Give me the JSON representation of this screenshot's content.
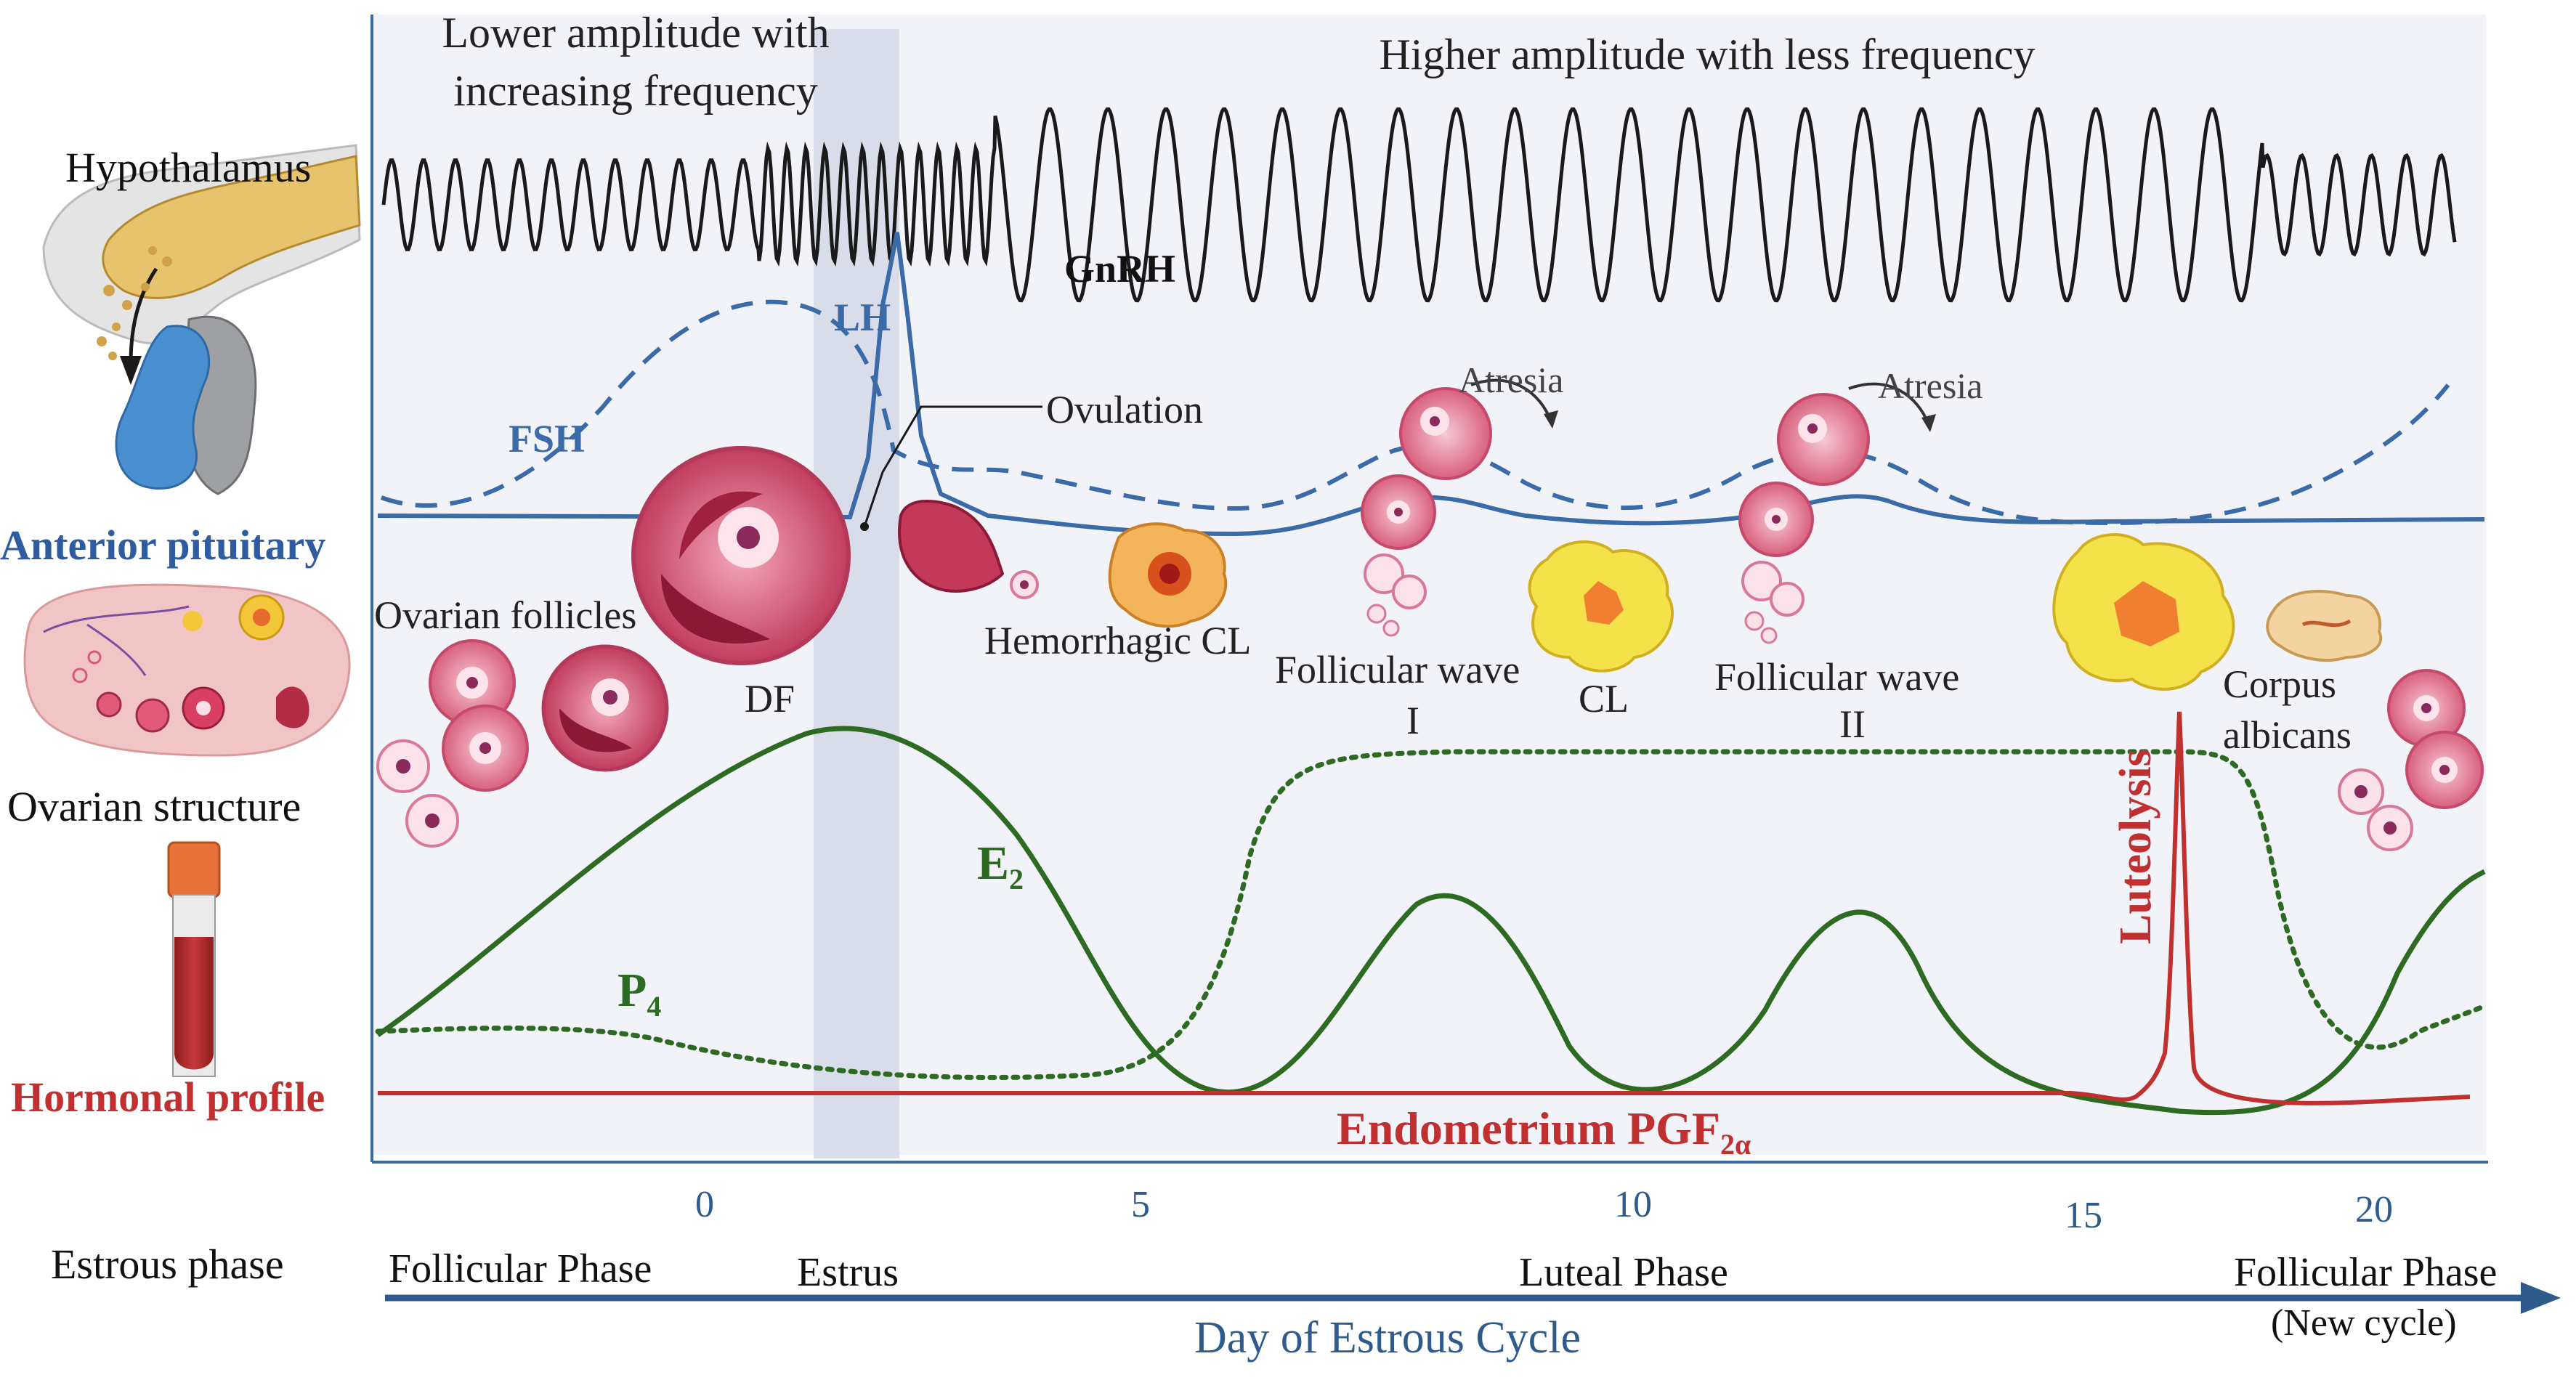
{
  "row_labels": {
    "hypothalamus": "Hypothalamus",
    "anterior_pituitary": "Anterior pituitary",
    "ovarian_structure": "Ovarian structure",
    "hormonal_profile": "Hormonal profile",
    "estrous_phase": "Estrous phase"
  },
  "annotations": {
    "gnrh_low_line1": "Lower amplitude with",
    "gnrh_low_line2": "increasing frequency",
    "gnrh_high": "Higher amplitude with less frequency",
    "gnrh": "GnRH",
    "lh": "LH",
    "fsh": "FSH",
    "ovulation": "Ovulation",
    "ovarian_follicles": "Ovarian follicles",
    "df": "DF",
    "hemorrhagic_cl": "Hemorrhagic CL",
    "follicular_wave_1_line1": "Follicular wave",
    "follicular_wave_1_line2": "I",
    "cl": "CL",
    "follicular_wave_2_line1": "Follicular wave",
    "follicular_wave_2_line2": "II",
    "atresia_1": "Atresia",
    "atresia_2": "Atresia",
    "luteolysis": "Luteolysis",
    "corpus_albicans_line1": "Corpus",
    "corpus_albicans_line2": "albicans",
    "e2_main": "E",
    "e2_sub": "2",
    "p4_main": "P",
    "p4_sub": "4",
    "pgf_main": "Endometrium PGF",
    "pgf_sub": "2α"
  },
  "axis": {
    "title": "Day of Estrous Cycle",
    "ticks": [
      "0",
      "5",
      "10",
      "15",
      "20"
    ],
    "phases": {
      "follicular": "Follicular Phase",
      "estrus": "Estrus",
      "luteal": "Luteal Phase",
      "follicular_new_line1": "Follicular Phase",
      "follicular_new_line2": "(New cycle)"
    }
  },
  "colors": {
    "gnrh": "#1a1a1a",
    "lh_fsh": "#3a6aa8",
    "estradiol": "#2d6a22",
    "progesterone": "#2d6a22",
    "pgf": "#c03030",
    "phase_axis": "#2f5b8c",
    "panel_bg": "#f1f3f9",
    "estrus_band": "#d3d8e6"
  }
}
